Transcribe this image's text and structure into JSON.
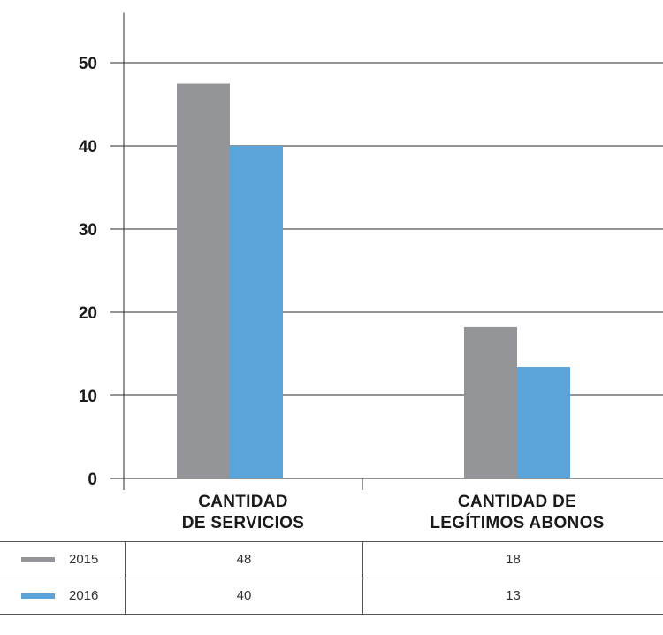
{
  "chart_data": {
    "type": "bar",
    "categories": [
      [
        "CANTIDAD",
        "DE SERVICIOS"
      ],
      [
        "CANTIDAD DE",
        "LEGÍTIMOS ABONOS"
      ]
    ],
    "series": [
      {
        "name": "2015",
        "values": [
          47.5,
          18.2
        ],
        "color": "#939598"
      },
      {
        "name": "2016",
        "values": [
          40,
          13.4
        ],
        "color": "#5ba4d9"
      }
    ],
    "yticks": [
      "0",
      "10",
      "20",
      "30",
      "40",
      "50"
    ],
    "ylim": [
      0,
      56
    ],
    "grid": true,
    "legend": "table-below"
  },
  "table": {
    "rows": [
      {
        "label": "2015",
        "values": [
          "48",
          "18"
        ]
      },
      {
        "label": "2016",
        "values": [
          "40",
          "13"
        ]
      }
    ]
  }
}
